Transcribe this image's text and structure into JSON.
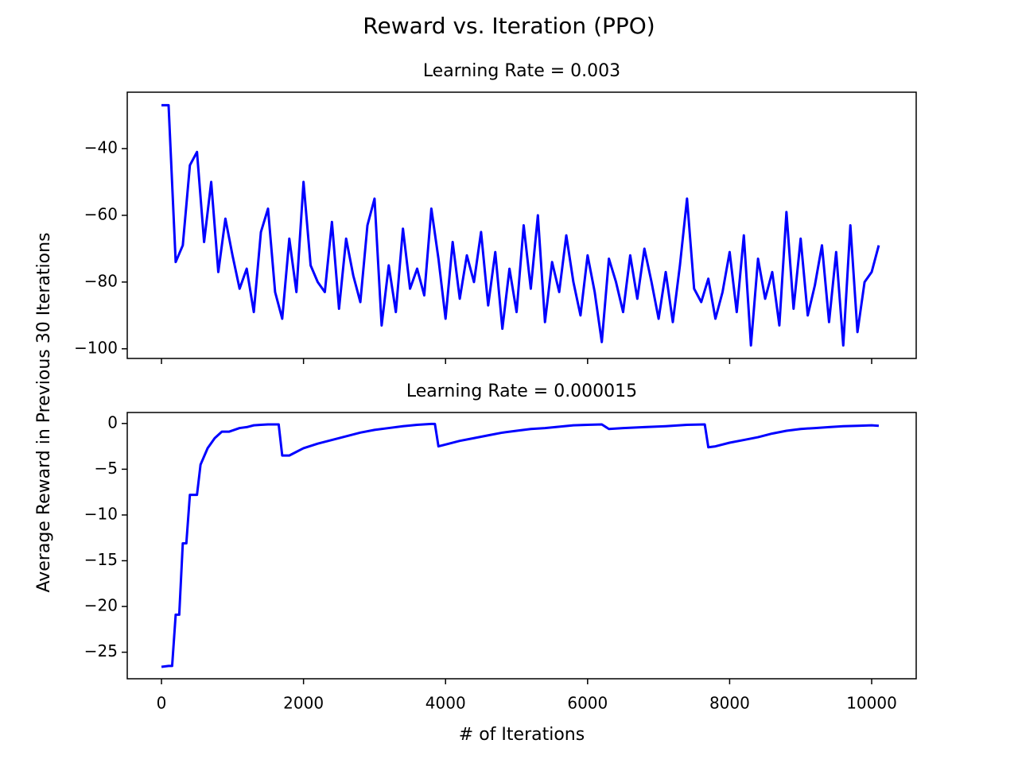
{
  "figure": {
    "title": "Reward vs. Iteration (PPO)",
    "xlabel": "# of Iterations",
    "ylabel": "Average Reward in Previous 30 Iterations"
  },
  "chart_data": [
    {
      "type": "line",
      "title": "Learning Rate = 0.003",
      "x": [
        0,
        100,
        200,
        300,
        400,
        500,
        600,
        700,
        800,
        900,
        1000,
        1100,
        1200,
        1300,
        1400,
        1500,
        1600,
        1700,
        1800,
        1900,
        2000,
        2100,
        2200,
        2300,
        2400,
        2500,
        2600,
        2700,
        2800,
        2900,
        3000,
        3100,
        3200,
        3300,
        3400,
        3500,
        3600,
        3700,
        3800,
        3900,
        4000,
        4100,
        4200,
        4300,
        4400,
        4500,
        4600,
        4700,
        4800,
        4900,
        5000,
        5100,
        5200,
        5300,
        5400,
        5500,
        5600,
        5700,
        5800,
        5900,
        6000,
        6100,
        6200,
        6300,
        6400,
        6500,
        6600,
        6700,
        6800,
        6900,
        7000,
        7100,
        7200,
        7300,
        7400,
        7500,
        7600,
        7700,
        7800,
        7900,
        8000,
        8100,
        8200,
        8300,
        8400,
        8500,
        8600,
        8700,
        8800,
        8900,
        9000,
        9100,
        9200,
        9300,
        9400,
        9500,
        9600,
        9700,
        9800,
        9900,
        10000,
        10100
      ],
      "series": [
        {
          "color": "#0000ff",
          "values": [
            -27,
            -27,
            -74,
            -69,
            -45,
            -41,
            -68,
            -50,
            -77,
            -61,
            -72,
            -82,
            -76,
            -89,
            -65,
            -58,
            -83,
            -91,
            -67,
            -83,
            -50,
            -75,
            -80,
            -83,
            -62,
            -88,
            -67,
            -78,
            -86,
            -63,
            -55,
            -93,
            -75,
            -89,
            -64,
            -82,
            -76,
            -84,
            -58,
            -73,
            -91,
            -68,
            -85,
            -72,
            -80,
            -65,
            -87,
            -71,
            -94,
            -76,
            -89,
            -63,
            -82,
            -60,
            -92,
            -74,
            -83,
            -66,
            -80,
            -90,
            -72,
            -83,
            -98,
            -73,
            -80,
            -89,
            -72,
            -85,
            -70,
            -80,
            -91,
            -77,
            -92,
            -75,
            -55,
            -82,
            -86,
            -79,
            -91,
            -83,
            -71,
            -89,
            -66,
            -99,
            -73,
            -85,
            -77,
            -93,
            -59,
            -88,
            -67,
            -90,
            -81,
            -69,
            -92,
            -71,
            -99,
            -63,
            -95,
            -80,
            -77,
            -69
          ]
        }
      ],
      "xlim": [
        -482,
        10627
      ],
      "xticks": [
        0,
        2000,
        4000,
        6000,
        8000,
        10000
      ],
      "show_xtick_labels": false,
      "ylim": [
        -102.9,
        -23.1
      ],
      "yticks": [
        {
          "value": -40,
          "label": "−40"
        },
        {
          "value": -60,
          "label": "−60"
        },
        {
          "value": -80,
          "label": "−80"
        },
        {
          "value": -100,
          "label": "−100"
        }
      ]
    },
    {
      "type": "line",
      "title": "Learning Rate = 0.000015",
      "x": [
        0,
        100,
        150,
        200,
        250,
        300,
        350,
        400,
        500,
        550,
        650,
        750,
        850,
        950,
        1100,
        1200,
        1300,
        1400,
        1500,
        1650,
        1700,
        1800,
        1900,
        2000,
        2200,
        2400,
        2600,
        2800,
        3000,
        3200,
        3400,
        3600,
        3800,
        3850,
        3900,
        4000,
        4200,
        4400,
        4600,
        4800,
        5000,
        5200,
        5400,
        5600,
        5800,
        6000,
        6200,
        6300,
        6500,
        6800,
        7100,
        7400,
        7650,
        7700,
        7800,
        8000,
        8200,
        8400,
        8600,
        8800,
        9000,
        9200,
        9400,
        9600,
        9800,
        10000,
        10100
      ],
      "series": [
        {
          "color": "#0000ff",
          "values": [
            -26.6,
            -26.5,
            -26.5,
            -20.9,
            -20.9,
            -13.1,
            -13.1,
            -7.8,
            -7.8,
            -4.5,
            -2.7,
            -1.6,
            -0.9,
            -0.9,
            -0.5,
            -0.4,
            -0.2,
            -0.15,
            -0.1,
            -0.1,
            -3.5,
            -3.5,
            -3.1,
            -2.7,
            -2.2,
            -1.8,
            -1.4,
            -1.0,
            -0.7,
            -0.5,
            -0.3,
            -0.15,
            -0.05,
            -0.05,
            -2.5,
            -2.3,
            -1.9,
            -1.6,
            -1.3,
            -1.0,
            -0.8,
            -0.6,
            -0.5,
            -0.35,
            -0.2,
            -0.15,
            -0.1,
            -0.6,
            -0.5,
            -0.4,
            -0.3,
            -0.15,
            -0.1,
            -2.6,
            -2.5,
            -2.1,
            -1.8,
            -1.5,
            -1.1,
            -0.8,
            -0.6,
            -0.5,
            -0.4,
            -0.3,
            -0.25,
            -0.2,
            -0.25
          ]
        }
      ],
      "xlim": [
        -482,
        10627
      ],
      "xticks": [
        0,
        2000,
        4000,
        6000,
        8000,
        10000
      ],
      "show_xtick_labels": true,
      "ylim": [
        -27.9,
        1.2
      ],
      "yticks": [
        0,
        {
          "value": -5,
          "label": "−5"
        },
        {
          "value": -10,
          "label": "−10"
        },
        {
          "value": -15,
          "label": "−15"
        },
        {
          "value": -20,
          "label": "−20"
        },
        {
          "value": -25,
          "label": "−25"
        }
      ]
    }
  ]
}
